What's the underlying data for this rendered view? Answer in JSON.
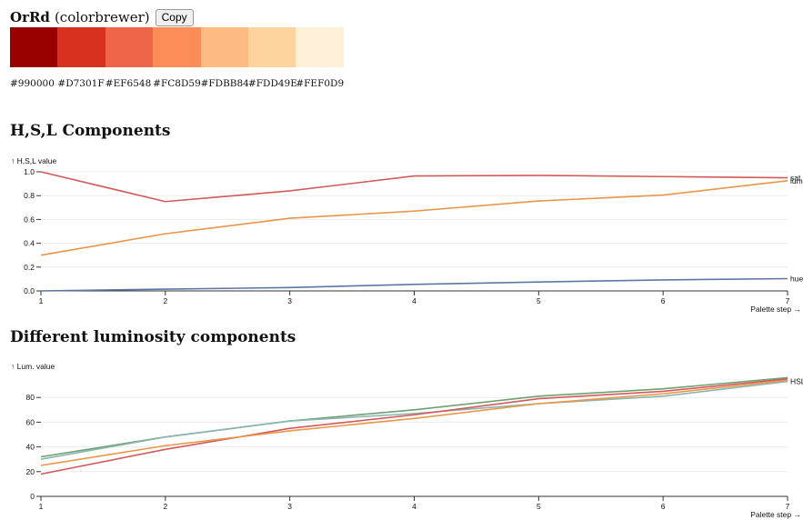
{
  "palette": {
    "name": "OrRd",
    "source": "(colorbrewer)",
    "copy_label": "Copy",
    "colors": [
      "#990000",
      "#D7301F",
      "#EF6548",
      "#FC8D59",
      "#FDBB84",
      "#FDD49E",
      "#FEF0D9"
    ],
    "hex_labels": [
      "#990000",
      "#D7301F",
      "#EF6548",
      "#FC8D59",
      "#FDBB84",
      "#FDD49E",
      "#FEF0D9"
    ]
  },
  "sections": {
    "hsl_title": "H,S,L Components",
    "lum_title": "Different luminosity components"
  },
  "chart_data": [
    {
      "type": "line",
      "title": "H,S,L Components",
      "ylabel": "↑ H,S,L value",
      "xlabel": "Palette step →",
      "x": [
        1,
        2,
        3,
        4,
        5,
        6,
        7
      ],
      "ylim": [
        0,
        1
      ],
      "yticks": [
        "0.0",
        "0.2",
        "0.4",
        "0.6",
        "0.8",
        "1.0"
      ],
      "ytick_values": [
        0,
        0.2,
        0.4,
        0.6,
        0.8,
        1.0
      ],
      "grid": true,
      "series": [
        {
          "name": "sat",
          "color": "#d15a5a",
          "values": [
            1.0,
            0.75,
            0.84,
            0.965,
            0.97,
            0.96,
            0.95
          ]
        },
        {
          "name": "lum",
          "color": "#e8964a",
          "values": [
            0.3,
            0.48,
            0.61,
            0.67,
            0.755,
            0.805,
            0.925
          ]
        },
        {
          "name": "hue",
          "color": "#5b78a3",
          "values": [
            0.0,
            0.015,
            0.028,
            0.055,
            0.075,
            0.092,
            0.103
          ]
        }
      ]
    },
    {
      "type": "line",
      "title": "Different luminosity components",
      "ylabel": "↑ Lum. value",
      "xlabel": "Palette step →",
      "x": [
        1,
        2,
        3,
        4,
        5,
        6,
        7
      ],
      "ylim": [
        0,
        100
      ],
      "yticks": [
        "0",
        "20",
        "40",
        "60",
        "80"
      ],
      "ytick_values": [
        0,
        20,
        40,
        60,
        80
      ],
      "grid": true,
      "series": [
        {
          "name": "",
          "color": "#6fa070",
          "values": [
            32,
            48,
            61,
            70,
            81,
            87,
            96
          ]
        },
        {
          "name": "HSL",
          "color": "#8bb5b0",
          "values": [
            30,
            48,
            61,
            67,
            75,
            81,
            93
          ]
        },
        {
          "name": "",
          "color": "#d15a5a",
          "values": [
            18,
            38,
            55,
            66,
            79,
            85,
            95
          ]
        },
        {
          "name": "",
          "color": "#e8964a",
          "values": [
            25,
            41,
            53,
            63,
            75,
            83,
            94
          ]
        }
      ]
    }
  ]
}
